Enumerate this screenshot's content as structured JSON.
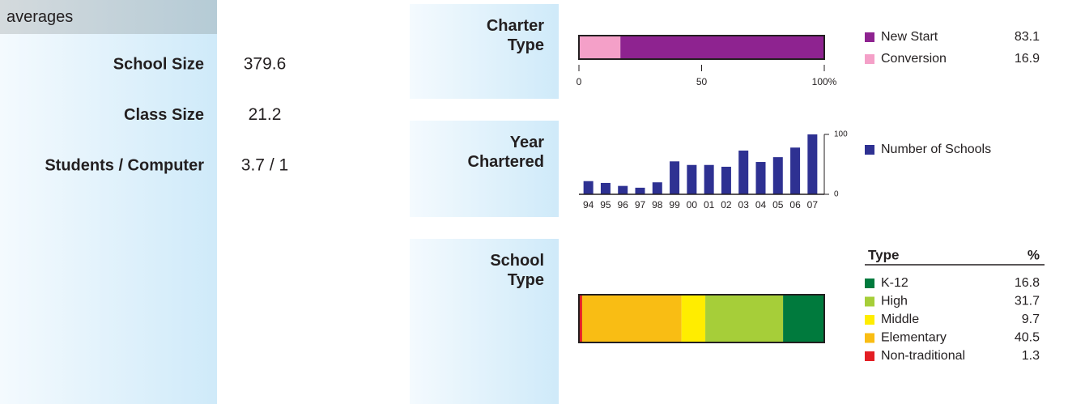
{
  "averages": {
    "title": "averages",
    "rows": [
      [
        "School Size",
        "379.6"
      ],
      [
        "Class Size",
        "21.2"
      ],
      [
        "Students / Computer",
        "3.7 / 1"
      ]
    ]
  },
  "chart_data": [
    {
      "type": "stacked-bar",
      "title": "Charter Type",
      "xlim": [
        0,
        100
      ],
      "xticks": [
        0,
        50,
        {
          "value": 100,
          "label": "100%"
        }
      ],
      "series": [
        {
          "name": "New Start",
          "color": "#8e2390",
          "values": [
            83.1
          ]
        },
        {
          "name": "Conversion",
          "color": "#f4a0c8",
          "values": [
            16.9
          ]
        }
      ]
    },
    {
      "type": "bar",
      "title": "Year Chartered",
      "categories": [
        "94",
        "95",
        "96",
        "97",
        "98",
        "99",
        "00",
        "01",
        "02",
        "03",
        "04",
        "05",
        "06",
        "07"
      ],
      "ylim": [
        0,
        100
      ],
      "yticks": [
        0,
        100
      ],
      "series": [
        {
          "name": "Number of Schools",
          "color": "#2e3192",
          "values": [
            22,
            19,
            14,
            11,
            20,
            55,
            49,
            49,
            46,
            73,
            54,
            62,
            78,
            100
          ]
        }
      ]
    },
    {
      "type": "stacked-bar",
      "title": "School Type",
      "legend_header": [
        "Type",
        "%"
      ],
      "series": [
        {
          "name": "K-12",
          "color": "#007a3d",
          "values": [
            16.8
          ]
        },
        {
          "name": "High",
          "color": "#a6ce39",
          "values": [
            31.7
          ]
        },
        {
          "name": "Middle",
          "color": "#ffed00",
          "values": [
            9.7
          ]
        },
        {
          "name": "Elementary",
          "color": "#f9bd14",
          "values": [
            40.5
          ]
        },
        {
          "name": "Non-traditional",
          "color": "#e31e24",
          "values": [
            1.3
          ]
        }
      ]
    }
  ]
}
